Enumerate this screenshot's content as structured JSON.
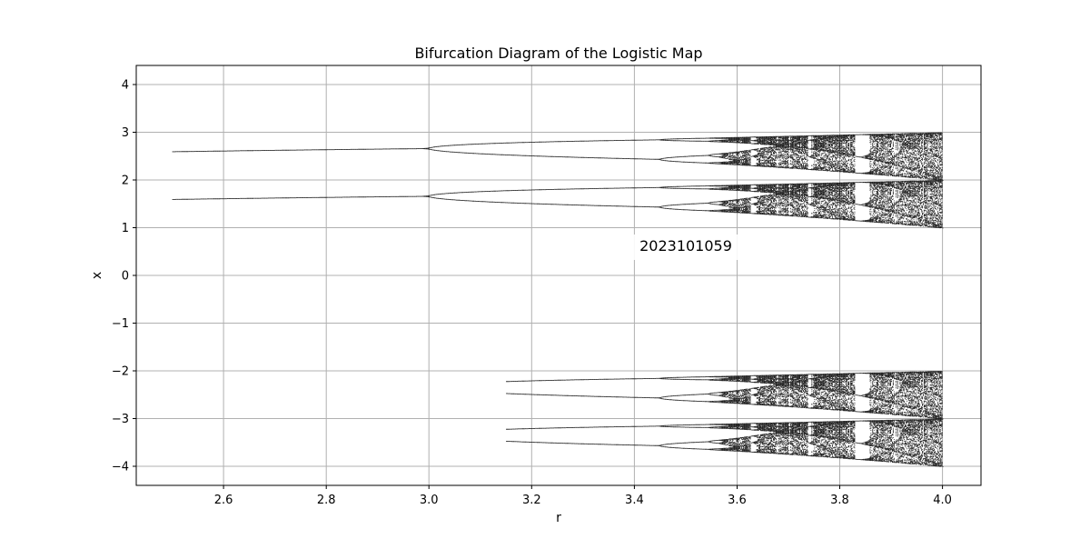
{
  "chart_data": {
    "type": "scatter",
    "title": "Bifurcation Diagram of the Logistic Map",
    "xlabel": "r",
    "ylabel": "x",
    "xlim": [
      2.43,
      4.075
    ],
    "ylim": [
      -4.4,
      4.4
    ],
    "grid": true,
    "xticks": [
      2.6,
      2.8,
      3.0,
      3.2,
      3.4,
      3.6,
      3.8,
      4.0
    ],
    "xtick_labels": [
      "2.6",
      "2.8",
      "3.0",
      "3.2",
      "3.4",
      "3.6",
      "3.8",
      "4.0"
    ],
    "yticks": [
      4,
      3,
      2,
      1,
      0,
      -1,
      -2,
      -3,
      -4
    ],
    "ytick_labels": [
      "4",
      "3",
      "2",
      "1",
      "0",
      "−1",
      "−2",
      "−3",
      "−4"
    ],
    "r_range": [
      2.5,
      4.0
    ],
    "upper_branch_offset": 2,
    "lower_branch_offset": 1,
    "mirror_branch_from_r": 3.15,
    "mirror_branch_offsets": [
      -3,
      -4
    ],
    "series_color": "#000000",
    "watermark": "2023101059",
    "watermark_color": "#f4b6b6"
  }
}
